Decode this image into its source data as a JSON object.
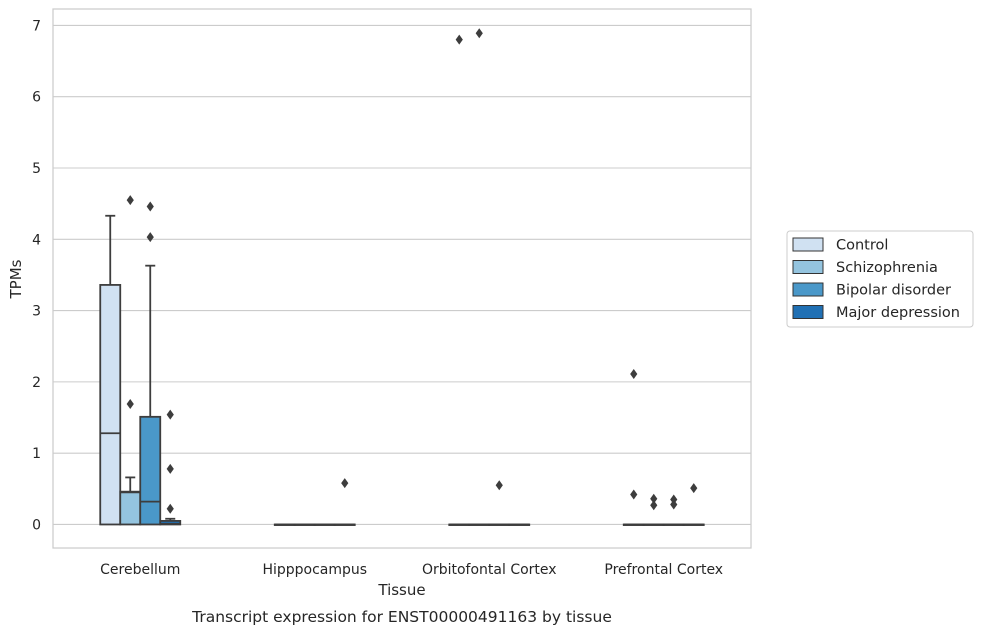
{
  "chart_data": {
    "type": "box",
    "caption": "Transcript expression for ENST00000491163 by tissue",
    "xlabel": "Tissue",
    "ylabel": "TPMs",
    "ylim": [
      -0.33,
      7.23
    ],
    "yticks": [
      0,
      1,
      2,
      3,
      4,
      5,
      6,
      7
    ],
    "grid": true,
    "legend_position": "right",
    "categories": [
      "Cerebellum",
      "Hipppocampus",
      "Orbitofontal Cortex",
      "Prefrontal Cortex"
    ],
    "series": [
      {
        "name": "Control",
        "color": "#d0e1f2",
        "boxes": [
          {
            "q1": 0,
            "median": 1.28,
            "q3": 3.36,
            "whisker_low": 0,
            "whisker_high": 4.33,
            "outliers": []
          },
          {
            "q1": 0,
            "median": 0,
            "q3": 0,
            "whisker_low": 0,
            "whisker_high": 0,
            "outliers": []
          },
          {
            "q1": 0,
            "median": 0,
            "q3": 0,
            "whisker_low": 0,
            "whisker_high": 0,
            "outliers": [
              6.8
            ]
          },
          {
            "q1": 0,
            "median": 0,
            "q3": 0,
            "whisker_low": 0,
            "whisker_high": 0,
            "outliers": [
              2.11,
              0.42
            ]
          }
        ]
      },
      {
        "name": "Schizophrenia",
        "color": "#94c4df",
        "boxes": [
          {
            "q1": 0,
            "median": 0.45,
            "q3": 0.46,
            "whisker_low": 0,
            "whisker_high": 0.66,
            "outliers": [
              4.55,
              1.69
            ]
          },
          {
            "q1": 0,
            "median": 0,
            "q3": 0,
            "whisker_low": 0,
            "whisker_high": 0,
            "outliers": []
          },
          {
            "q1": 0,
            "median": 0,
            "q3": 0,
            "whisker_low": 0,
            "whisker_high": 0,
            "outliers": [
              6.89
            ]
          },
          {
            "q1": 0,
            "median": 0,
            "q3": 0,
            "whisker_low": 0,
            "whisker_high": 0,
            "outliers": [
              0.36,
              0.27
            ]
          }
        ]
      },
      {
        "name": "Bipolar disorder",
        "color": "#4a98c9",
        "boxes": [
          {
            "q1": 0,
            "median": 0.32,
            "q3": 1.51,
            "whisker_low": 0,
            "whisker_high": 3.63,
            "outliers": [
              4.46,
              4.03
            ]
          },
          {
            "q1": 0,
            "median": 0,
            "q3": 0,
            "whisker_low": 0,
            "whisker_high": 0,
            "outliers": []
          },
          {
            "q1": 0,
            "median": 0,
            "q3": 0,
            "whisker_low": 0,
            "whisker_high": 0,
            "outliers": [
              0.55
            ]
          },
          {
            "q1": 0,
            "median": 0,
            "q3": 0,
            "whisker_low": 0,
            "whisker_high": 0,
            "outliers": [
              0.35,
              0.28
            ]
          }
        ]
      },
      {
        "name": "Major depression",
        "color": "#2070b4",
        "boxes": [
          {
            "q1": 0,
            "median": 0.01,
            "q3": 0.05,
            "whisker_low": 0,
            "whisker_high": 0.08,
            "outliers": [
              1.54,
              0.78,
              0.22
            ]
          },
          {
            "q1": 0,
            "median": 0,
            "q3": 0,
            "whisker_low": 0,
            "whisker_high": 0,
            "outliers": [
              0.58
            ]
          },
          {
            "q1": 0,
            "median": 0,
            "q3": 0,
            "whisker_low": 0,
            "whisker_high": 0,
            "outliers": []
          },
          {
            "q1": 0,
            "median": 0,
            "q3": 0,
            "whisker_low": 0,
            "whisker_high": 0,
            "outliers": [
              0.51
            ]
          }
        ]
      }
    ]
  }
}
